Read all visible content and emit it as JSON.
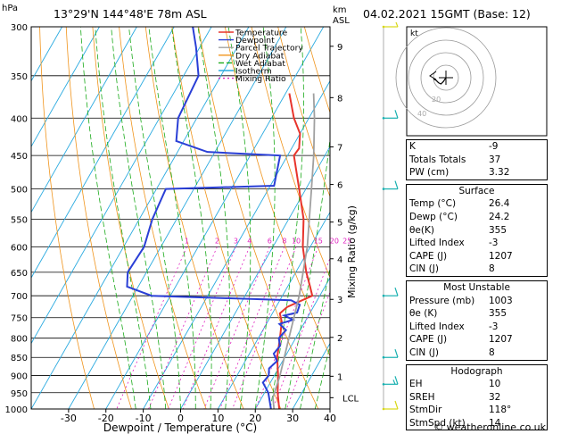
{
  "header": {
    "location": "13°29'N  144°48'E  78m  ASL",
    "datetime": "04.02.2021  15GMT  (Base: 12)",
    "hpa_label": "hPa",
    "km_label": "km",
    "asl_label": "ASL"
  },
  "colors": {
    "temperature": "#e8342c",
    "dewpoint": "#2a3fd6",
    "parcel": "#a0a0a0",
    "dry_adiabat": "#f0941c",
    "wet_adiabat": "#1aaa1a",
    "isotherm": "#2aaae0",
    "mixing_ratio": "#e020c0",
    "wind_barb": "#18b0b0",
    "wind_barb_top": "#d8d818"
  },
  "chart_data": {
    "type": "line",
    "title": "",
    "xlabel": "Dewpoint / Temperature (°C)",
    "ylabel": "Mixing Ratio (g/kg)",
    "pressure_levels": [
      300,
      350,
      400,
      450,
      500,
      550,
      600,
      650,
      700,
      750,
      800,
      850,
      900,
      950,
      1000
    ],
    "x_ticks": [
      -30,
      -20,
      -10,
      0,
      10,
      20,
      30,
      40
    ],
    "xlim": [
      -40,
      40
    ],
    "km_ticks": [
      {
        "label": "9",
        "p": 319
      },
      {
        "label": "8",
        "p": 375
      },
      {
        "label": "7",
        "p": 438
      },
      {
        "label": "6",
        "p": 493
      },
      {
        "label": "5",
        "p": 555
      },
      {
        "label": "4",
        "p": 623
      },
      {
        "label": "3",
        "p": 708
      },
      {
        "label": "2",
        "p": 798
      },
      {
        "label": "1",
        "p": 902
      },
      {
        "label": "LCL",
        "p": 965
      }
    ],
    "mixing_ratio_labels": [
      "1",
      "2",
      "3",
      "4",
      "6",
      "8",
      "10",
      "15",
      "20",
      "25"
    ],
    "mixing_ratio_values": [
      1,
      2,
      3,
      4,
      6,
      8,
      10,
      15,
      20,
      25
    ],
    "legend": [
      "Temperature",
      "Dewpoint",
      "Parcel Trajectory",
      "Dry Adiabat",
      "Wet Adiabat",
      "Isotherm",
      "Mixing Ratio"
    ],
    "legend_position": "top-left",
    "series": [
      {
        "name": "Temperature",
        "points": [
          [
            1000,
            26.4
          ],
          [
            950,
            23.5
          ],
          [
            900,
            21
          ],
          [
            850,
            18
          ],
          [
            800,
            15.8
          ],
          [
            760,
            13.8
          ],
          [
            740,
            12
          ],
          [
            725,
            13
          ],
          [
            700,
            18
          ],
          [
            680,
            16
          ],
          [
            650,
            12.8
          ],
          [
            600,
            8
          ],
          [
            550,
            4
          ],
          [
            500,
            -1.8
          ],
          [
            450,
            -8.3
          ],
          [
            440,
            -8
          ],
          [
            420,
            -10
          ],
          [
            400,
            -14
          ],
          [
            370,
            -19
          ]
        ]
      },
      {
        "name": "Dewpoint",
        "points": [
          [
            1000,
            24.2
          ],
          [
            950,
            21
          ],
          [
            920,
            18
          ],
          [
            900,
            18.5
          ],
          [
            880,
            17.5
          ],
          [
            860,
            18.5
          ],
          [
            840,
            16.5
          ],
          [
            820,
            17
          ],
          [
            800,
            15.5
          ],
          [
            780,
            16.2
          ],
          [
            765,
            13.5
          ],
          [
            755,
            16.5
          ],
          [
            745,
            13.5
          ],
          [
            738,
            16.5
          ],
          [
            720,
            16
          ],
          [
            710,
            13
          ],
          [
            700,
            -25
          ],
          [
            680,
            -33
          ],
          [
            650,
            -35
          ],
          [
            600,
            -34.5
          ],
          [
            550,
            -36.5
          ],
          [
            500,
            -37.5
          ],
          [
            495,
            -9
          ],
          [
            450,
            -12
          ],
          [
            445,
            -32
          ],
          [
            430,
            -42
          ],
          [
            400,
            -45
          ],
          [
            350,
            -46
          ],
          [
            320,
            -51
          ],
          [
            300,
            -55
          ]
        ]
      },
      {
        "name": "Parcel Trajectory",
        "points": [
          [
            1000,
            25
          ],
          [
            965,
            23
          ],
          [
            900,
            21.5
          ],
          [
            800,
            18.2
          ],
          [
            700,
            14.5
          ],
          [
            600,
            9.2
          ],
          [
            500,
            1.5
          ],
          [
            450,
            -3
          ],
          [
            400,
            -8.5
          ],
          [
            370,
            -12.5
          ]
        ]
      }
    ]
  },
  "wind_barbs": [
    {
      "p": 300,
      "dir": 120,
      "speed": 5
    },
    {
      "p": 400,
      "dir": 60,
      "speed": 10
    },
    {
      "p": 500,
      "dir": 70,
      "speed": 10
    },
    {
      "p": 700,
      "dir": 80,
      "speed": 10
    },
    {
      "p": 850,
      "dir": 80,
      "speed": 10
    },
    {
      "p": 925,
      "dir": 80,
      "speed": 15
    },
    {
      "p": 1000,
      "dir": 100,
      "speed": 10
    }
  ],
  "hodograph": {
    "label": "kt",
    "ring_labels": [
      "20",
      "40"
    ],
    "points": [
      [
        0,
        0
      ],
      [
        -2,
        3
      ],
      [
        -4,
        5
      ],
      [
        -6,
        4
      ],
      [
        -8,
        2
      ],
      [
        -10,
        1
      ]
    ]
  },
  "indices": {
    "top": [
      {
        "label": "K",
        "value": "-9"
      },
      {
        "label": "Totals Totals",
        "value": "37"
      },
      {
        "label": "PW (cm)",
        "value": "3.32"
      }
    ],
    "surface": {
      "title": "Surface",
      "rows": [
        {
          "label": "Temp (°C)",
          "value": "26.4"
        },
        {
          "label": "Dewp (°C)",
          "value": "24.2"
        },
        {
          "label": "θe(K)",
          "value": "355"
        },
        {
          "label": "Lifted Index",
          "value": "-3"
        },
        {
          "label": "CAPE (J)",
          "value": "1207"
        },
        {
          "label": "CIN (J)",
          "value": "8"
        }
      ]
    },
    "most_unstable": {
      "title": "Most Unstable",
      "rows": [
        {
          "label": "Pressure (mb)",
          "value": "1003"
        },
        {
          "label": "θe (K)",
          "value": "355"
        },
        {
          "label": "Lifted Index",
          "value": "-3"
        },
        {
          "label": "CAPE (J)",
          "value": "1207"
        },
        {
          "label": "CIN (J)",
          "value": "8"
        }
      ]
    },
    "hodograph": {
      "title": "Hodograph",
      "rows": [
        {
          "label": "EH",
          "value": "10"
        },
        {
          "label": "SREH",
          "value": "32"
        },
        {
          "label": "StmDir",
          "value": "118°"
        },
        {
          "label": "StmSpd (kt)",
          "value": "14"
        }
      ]
    }
  },
  "footer": "© weatheronline.co.uk"
}
